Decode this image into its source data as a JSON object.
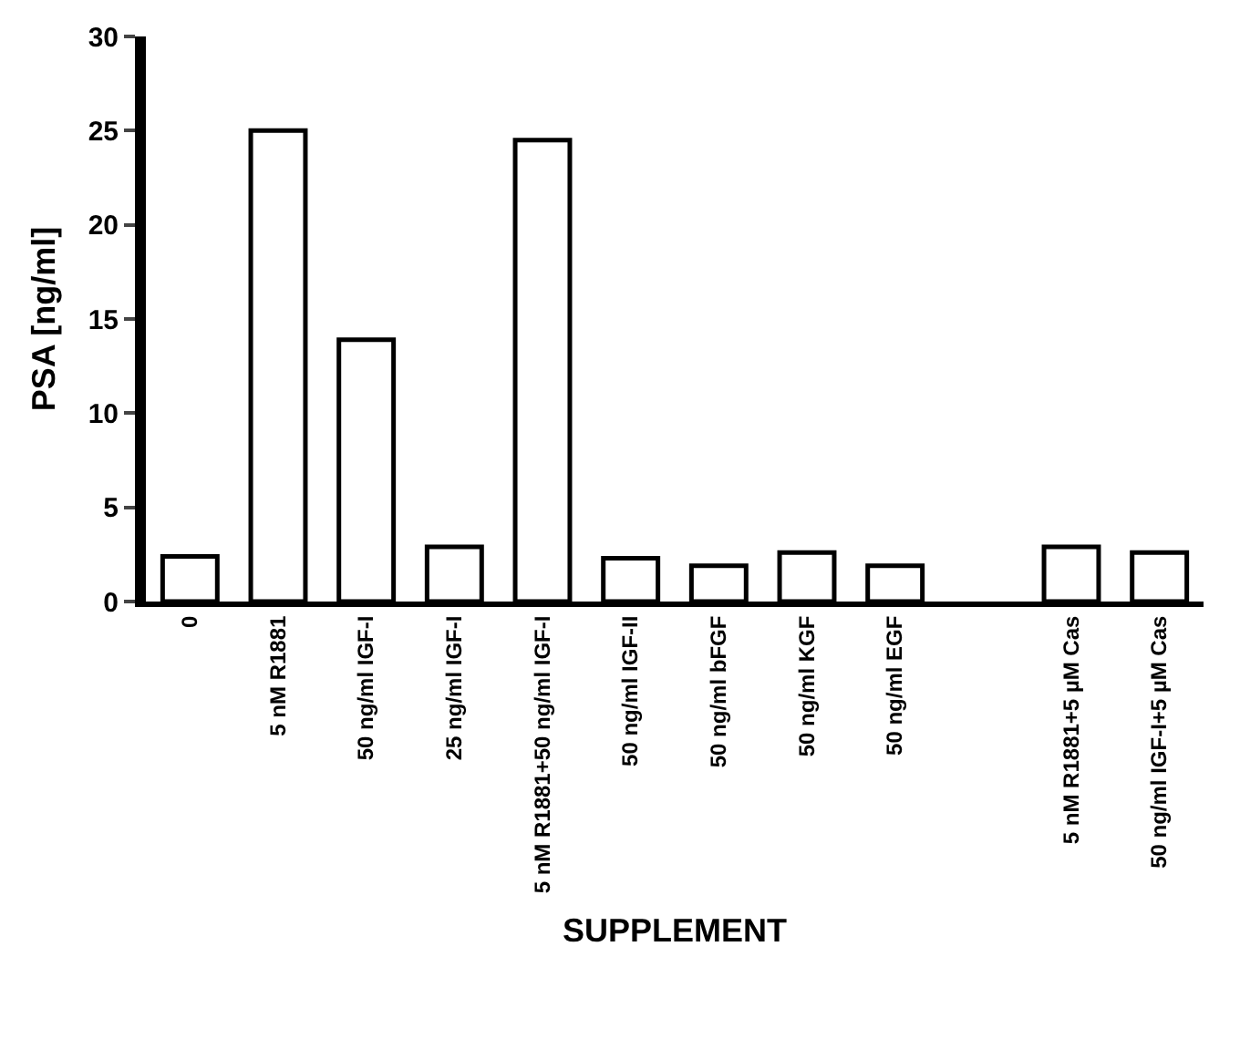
{
  "chart_data": {
    "type": "bar",
    "xlabel": "SUPPLEMENT",
    "ylabel": "PSA [ng/ml]",
    "categories": [
      "0",
      "5 nM R1881",
      "50 ng/ml IGF-I",
      "25 ng/ml IGF-I",
      "5 nM R1881+50 ng/ml IGF-I",
      "50 ng/ml IGF-II",
      "50 ng/ml bFGF",
      "50 ng/ml KGF",
      "50 ng/ml EGF",
      null,
      "5 nM R1881+5 µM Cas",
      "50 ng/ml IGF-I+5 µM Cas"
    ],
    "values": [
      2.4,
      25,
      13.9,
      2.9,
      24.5,
      2.3,
      1.9,
      2.6,
      1.9,
      null,
      2.9,
      2.6
    ],
    "color": "#ffffff",
    "ylim": [
      0,
      30
    ],
    "yticks": [
      0,
      5,
      10,
      15,
      20,
      25,
      30
    ]
  }
}
